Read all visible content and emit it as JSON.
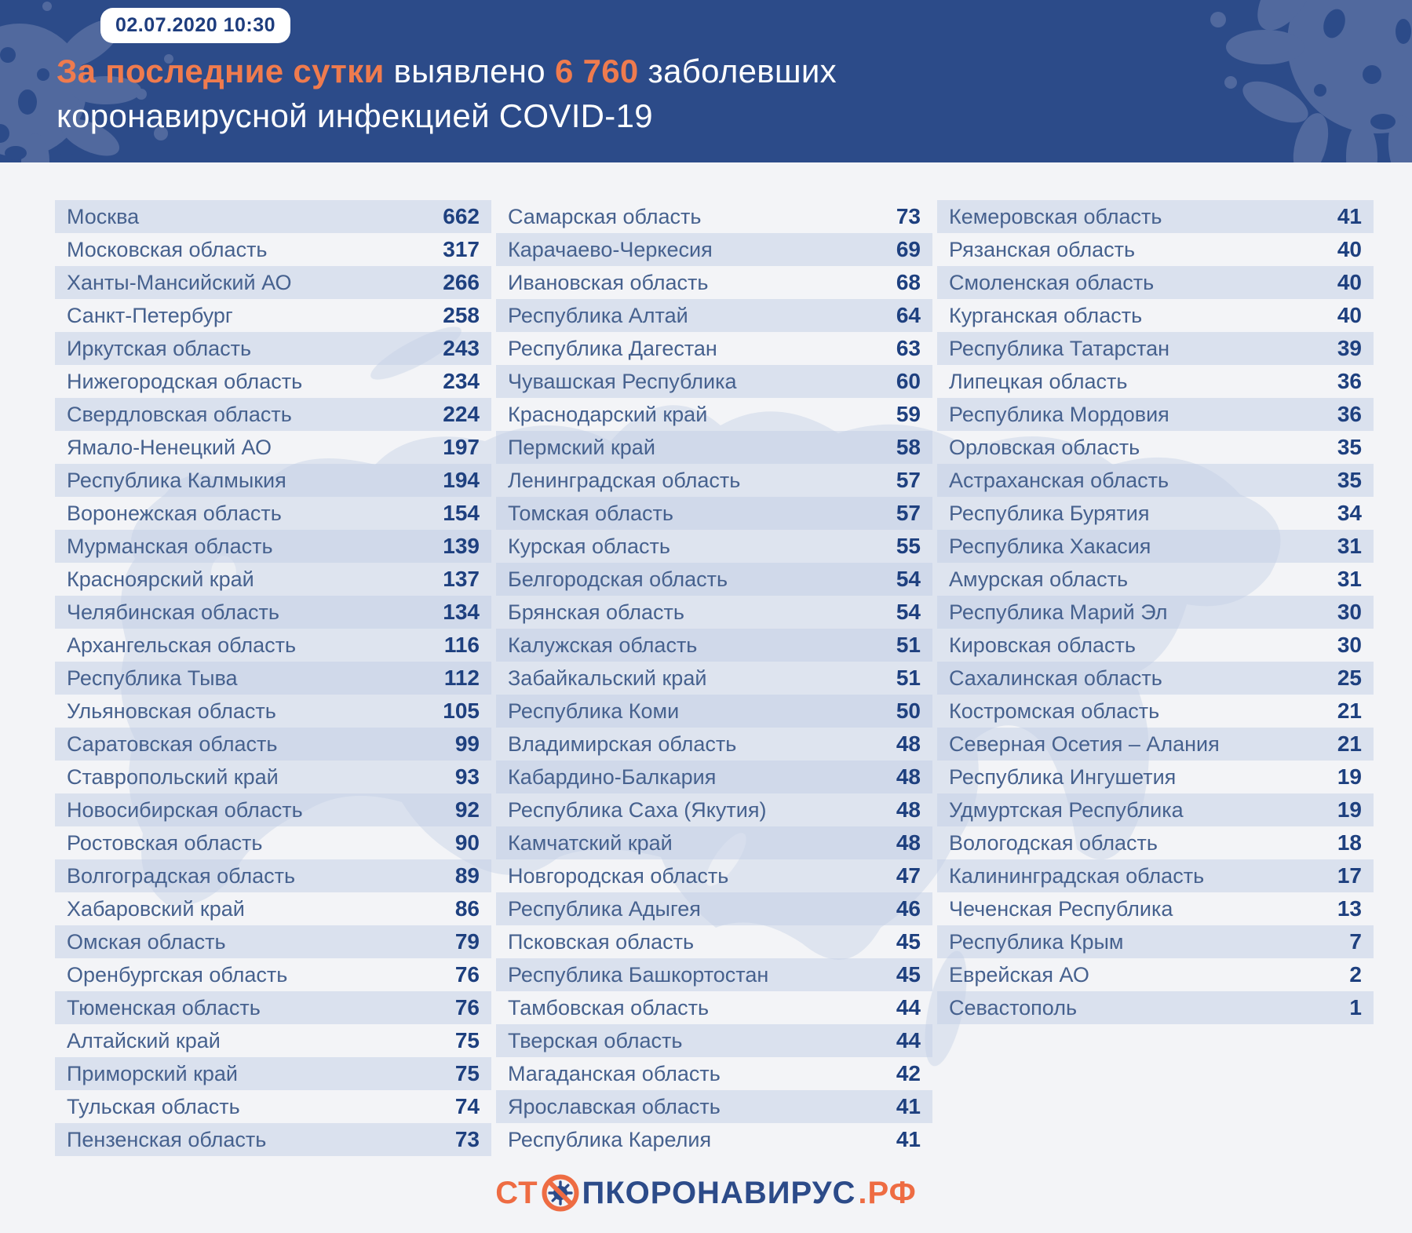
{
  "header": {
    "timestamp": "02.07.2020 10:30",
    "title_highlight": "За последние сутки",
    "title_mid": " выявлено ",
    "title_count": "6 760",
    "title_tail": " заболевших",
    "title_line2": "коронавирусной инфекцией COVID-19"
  },
  "columns": [
    {
      "rows": [
        {
          "name": "Москва",
          "value": 662
        },
        {
          "name": "Московская область",
          "value": 317
        },
        {
          "name": "Ханты-Мансийский АО",
          "value": 266
        },
        {
          "name": "Санкт-Петербург",
          "value": 258
        },
        {
          "name": "Иркутская область",
          "value": 243
        },
        {
          "name": "Нижегородская область",
          "value": 234
        },
        {
          "name": "Свердловская область",
          "value": 224
        },
        {
          "name": "Ямало-Ненецкий АО",
          "value": 197
        },
        {
          "name": "Республика Калмыкия",
          "value": 194
        },
        {
          "name": "Воронежская область",
          "value": 154
        },
        {
          "name": "Мурманская область",
          "value": 139
        },
        {
          "name": "Красноярский край",
          "value": 137
        },
        {
          "name": "Челябинская область",
          "value": 134
        },
        {
          "name": "Архангельская область",
          "value": 116
        },
        {
          "name": "Республика Тыва",
          "value": 112
        },
        {
          "name": "Ульяновская область",
          "value": 105
        },
        {
          "name": "Саратовская область",
          "value": 99
        },
        {
          "name": "Ставропольский край",
          "value": 93
        },
        {
          "name": "Новосибирская область",
          "value": 92
        },
        {
          "name": "Ростовская область",
          "value": 90
        },
        {
          "name": "Волгоградская область",
          "value": 89
        },
        {
          "name": "Хабаровский край",
          "value": 86
        },
        {
          "name": "Омская область",
          "value": 79
        },
        {
          "name": "Оренбургская область",
          "value": 76
        },
        {
          "name": "Тюменская область",
          "value": 76
        },
        {
          "name": "Алтайский край",
          "value": 75
        },
        {
          "name": "Приморский край",
          "value": 75
        },
        {
          "name": "Тульская область",
          "value": 74
        },
        {
          "name": "Пензенская область",
          "value": 73
        }
      ]
    },
    {
      "rows": [
        {
          "name": "Самарская область",
          "value": 73
        },
        {
          "name": "Карачаево-Черкесия",
          "value": 69
        },
        {
          "name": "Ивановская область",
          "value": 68
        },
        {
          "name": "Республика Алтай",
          "value": 64
        },
        {
          "name": "Республика Дагестан",
          "value": 63
        },
        {
          "name": "Чувашская Республика",
          "value": 60
        },
        {
          "name": "Краснодарский край",
          "value": 59
        },
        {
          "name": "Пермский край",
          "value": 58
        },
        {
          "name": "Ленинградская область",
          "value": 57
        },
        {
          "name": "Томская область",
          "value": 57
        },
        {
          "name": "Курская область",
          "value": 55
        },
        {
          "name": "Белгородская область",
          "value": 54
        },
        {
          "name": "Брянская область",
          "value": 54
        },
        {
          "name": "Калужская область",
          "value": 51
        },
        {
          "name": "Забайкальский край",
          "value": 51
        },
        {
          "name": "Республика Коми",
          "value": 50
        },
        {
          "name": "Владимирская область",
          "value": 48
        },
        {
          "name": "Кабардино-Балкария",
          "value": 48
        },
        {
          "name": "Республика Саха (Якутия)",
          "value": 48
        },
        {
          "name": "Камчатский край",
          "value": 48
        },
        {
          "name": "Новгородская область",
          "value": 47
        },
        {
          "name": "Республика Адыгея",
          "value": 46
        },
        {
          "name": "Псковская область",
          "value": 45
        },
        {
          "name": "Республика Башкортостан",
          "value": 45
        },
        {
          "name": "Тамбовская область",
          "value": 44
        },
        {
          "name": "Тверская область",
          "value": 44
        },
        {
          "name": "Магаданская область",
          "value": 42
        },
        {
          "name": "Ярославская область",
          "value": 41
        },
        {
          "name": "Республика Карелия",
          "value": 41
        }
      ]
    },
    {
      "rows": [
        {
          "name": "Кемеровская область",
          "value": 41
        },
        {
          "name": "Рязанская область",
          "value": 40
        },
        {
          "name": "Смоленская область",
          "value": 40
        },
        {
          "name": "Курганская область",
          "value": 40
        },
        {
          "name": "Республика Татарстан",
          "value": 39
        },
        {
          "name": "Липецкая область",
          "value": 36
        },
        {
          "name": "Республика Мордовия",
          "value": 36
        },
        {
          "name": "Орловская область",
          "value": 35
        },
        {
          "name": "Астраханская область",
          "value": 35
        },
        {
          "name": "Республика Бурятия",
          "value": 34
        },
        {
          "name": "Республика Хакасия",
          "value": 31
        },
        {
          "name": "Амурская область",
          "value": 31
        },
        {
          "name": "Республика Марий Эл",
          "value": 30
        },
        {
          "name": "Кировская область",
          "value": 30
        },
        {
          "name": "Сахалинская область",
          "value": 25
        },
        {
          "name": "Костромская область",
          "value": 21
        },
        {
          "name": "Северная Осетия – Алания",
          "value": 21
        },
        {
          "name": "Республика Ингушетия",
          "value": 19
        },
        {
          "name": "Удмуртская Республика",
          "value": 19
        },
        {
          "name": "Вологодская область",
          "value": 18
        },
        {
          "name": "Калининградская область",
          "value": 17
        },
        {
          "name": "Чеченская Республика",
          "value": 13
        },
        {
          "name": "Республика Крым",
          "value": 7
        },
        {
          "name": "Еврейская АО",
          "value": 2
        },
        {
          "name": "Севастополь",
          "value": 1
        }
      ]
    }
  ],
  "footer": {
    "logo_prefix": "СТ",
    "logo_middle": "ПКОРОНАВИРУС",
    "logo_suffix": ".РФ"
  },
  "colors": {
    "header_bg": "#2c4b89",
    "accent_orange": "#ef7b4e",
    "logo_orange": "#ee6c43",
    "stripe": "#dae1ee",
    "name_text": "#46618e",
    "value_text": "#1e407f"
  }
}
